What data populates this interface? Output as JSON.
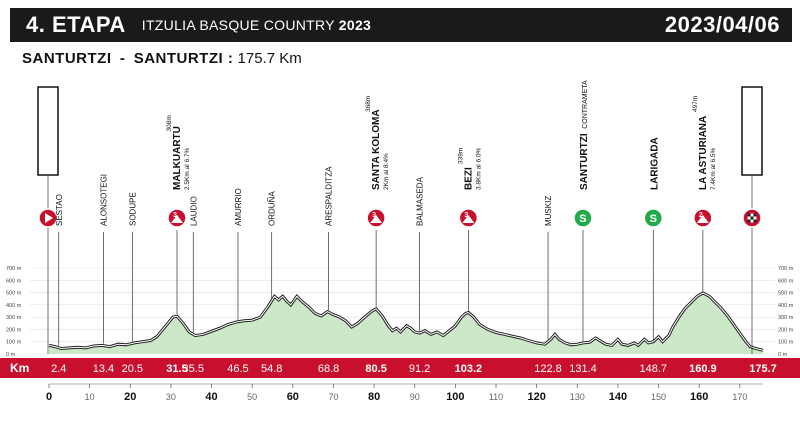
{
  "header": {
    "stage": "4. ETAPA",
    "race": "ITZULIA BASQUE COUNTRY",
    "year": "2023",
    "date": "2023/04/06"
  },
  "route": {
    "start": "SANTURTZI",
    "separator": "-",
    "finish": "SANTURTZI :",
    "distance": "175.7 Km"
  },
  "colors": {
    "bar_red": "#c8102e",
    "sprint_green": "#22a94a",
    "profile_light": "#cde8c9",
    "profile_dark": "#2e8b3a",
    "header_bg": "#1a1a1a"
  },
  "chart_data": {
    "type": "area",
    "xlabel": "Km",
    "xlim": [
      0,
      175.7
    ],
    "ylim": [
      0,
      700
    ],
    "y_ticks": [
      "700 m",
      "600 m",
      "500 m",
      "400 m",
      "300 m",
      "200 m",
      "100 m",
      "0 m"
    ],
    "x_ticks": [
      0,
      10,
      20,
      30,
      40,
      50,
      60,
      70,
      80,
      90,
      100,
      110,
      120,
      130,
      140,
      150,
      160,
      170
    ],
    "km_markers": [
      "2.4",
      "13.4",
      "20.5",
      "31.5",
      "35.5",
      "46.5",
      "54.8",
      "68.8",
      "80.5",
      "91.2",
      "103.2",
      "122.8",
      "131.4",
      "148.7",
      "160.9",
      "175.7"
    ],
    "km_markers_highlight": [
      "31.5",
      "80.5",
      "103.2",
      "160.9",
      "175.7"
    ],
    "points": [
      {
        "name": "SANTURTZI",
        "km": 0,
        "kind": "start",
        "sub": ""
      },
      {
        "name": "SESTAO",
        "km": 2.4,
        "kind": "town",
        "sub": ""
      },
      {
        "name": "ALONSOTEGI",
        "km": 13.4,
        "kind": "town",
        "sub": ""
      },
      {
        "name": "SODUPE",
        "km": 20.5,
        "kind": "town",
        "sub": ""
      },
      {
        "name": "MALKUARTU",
        "km": 31.5,
        "kind": "climb",
        "alt": "308m",
        "sub": "2.5Km al 6.7%",
        "cat": "3"
      },
      {
        "name": "LAUDIO",
        "km": 35.5,
        "kind": "town",
        "sub": ""
      },
      {
        "name": "AMURRIO",
        "km": 46.5,
        "kind": "town",
        "sub": ""
      },
      {
        "name": "ORDUÑA",
        "km": 54.8,
        "kind": "town",
        "sub": ""
      },
      {
        "name": "ARESPALDITZA",
        "km": 68.8,
        "kind": "town",
        "sub": ""
      },
      {
        "name": "SANTA KOLOMA",
        "km": 80.5,
        "kind": "climb",
        "alt": "368m",
        "sub": "2Km al 8.4%",
        "cat": "3"
      },
      {
        "name": "BALMASEDA",
        "km": 91.2,
        "kind": "town",
        "sub": ""
      },
      {
        "name": "BEZI",
        "km": 103.2,
        "kind": "climb",
        "alt": "339m",
        "sub": "3.8Km al 6.0%",
        "cat": "3"
      },
      {
        "name": "MUSKIZ",
        "km": 122.8,
        "kind": "town",
        "sub": ""
      },
      {
        "name": "SANTURTZI",
        "km": 131.4,
        "kind": "sprint",
        "sub": "CONTRAMETA",
        "cat": "S"
      },
      {
        "name": "LARIGADA",
        "km": 148.7,
        "kind": "sprint",
        "sub": "",
        "cat": "S"
      },
      {
        "name": "LA ASTURIANA",
        "km": 160.9,
        "kind": "climb",
        "alt": "497m",
        "sub": "7.4Km al 6.5%",
        "cat": "2"
      },
      {
        "name": "SANTURTZI",
        "km": 175.7,
        "kind": "finish",
        "sub": ""
      }
    ],
    "profile": [
      [
        0,
        70
      ],
      [
        1.5,
        60
      ],
      [
        3,
        45
      ],
      [
        5,
        50
      ],
      [
        7,
        55
      ],
      [
        9,
        50
      ],
      [
        11,
        65
      ],
      [
        13,
        70
      ],
      [
        15,
        60
      ],
      [
        17,
        80
      ],
      [
        19,
        75
      ],
      [
        21,
        90
      ],
      [
        23,
        100
      ],
      [
        25,
        110
      ],
      [
        26.5,
        140
      ],
      [
        28,
        200
      ],
      [
        29.5,
        260
      ],
      [
        30.5,
        300
      ],
      [
        31.5,
        308
      ],
      [
        33,
        250
      ],
      [
        34.5,
        180
      ],
      [
        36,
        150
      ],
      [
        38,
        160
      ],
      [
        40,
        185
      ],
      [
        42,
        210
      ],
      [
        44,
        240
      ],
      [
        46,
        260
      ],
      [
        48,
        270
      ],
      [
        50,
        275
      ],
      [
        52,
        300
      ],
      [
        54,
        390
      ],
      [
        55.5,
        470
      ],
      [
        56.5,
        440
      ],
      [
        57.5,
        470
      ],
      [
        58.5,
        430
      ],
      [
        59.5,
        400
      ],
      [
        61,
        470
      ],
      [
        62.5,
        420
      ],
      [
        64,
        380
      ],
      [
        65.5,
        330
      ],
      [
        67,
        310
      ],
      [
        68.5,
        345
      ],
      [
        70,
        320
      ],
      [
        71.5,
        300
      ],
      [
        73,
        270
      ],
      [
        74.5,
        220
      ],
      [
        76,
        250
      ],
      [
        78,
        310
      ],
      [
        79.5,
        350
      ],
      [
        80.5,
        368
      ],
      [
        82,
        310
      ],
      [
        83.5,
        230
      ],
      [
        84.5,
        190
      ],
      [
        85.5,
        210
      ],
      [
        86.5,
        180
      ],
      [
        88,
        230
      ],
      [
        89,
        210
      ],
      [
        90,
        180
      ],
      [
        91.2,
        170
      ],
      [
        92.5,
        190
      ],
      [
        94,
        160
      ],
      [
        95.5,
        180
      ],
      [
        97,
        150
      ],
      [
        98.5,
        190
      ],
      [
        100,
        230
      ],
      [
        101.5,
        300
      ],
      [
        102.5,
        330
      ],
      [
        103.2,
        339
      ],
      [
        104.5,
        300
      ],
      [
        106,
        240
      ],
      [
        108,
        200
      ],
      [
        110,
        175
      ],
      [
        112,
        160
      ],
      [
        114,
        145
      ],
      [
        116,
        130
      ],
      [
        118,
        110
      ],
      [
        120,
        90
      ],
      [
        122,
        80
      ],
      [
        123.5,
        120
      ],
      [
        124.5,
        160
      ],
      [
        125.5,
        120
      ],
      [
        127,
        90
      ],
      [
        128.5,
        75
      ],
      [
        130,
        80
      ],
      [
        131.4,
        90
      ],
      [
        133,
        95
      ],
      [
        134.5,
        130
      ],
      [
        135.5,
        110
      ],
      [
        137,
        80
      ],
      [
        138.5,
        70
      ],
      [
        140,
        120
      ],
      [
        141,
        80
      ],
      [
        142.5,
        70
      ],
      [
        144,
        90
      ],
      [
        145,
        70
      ],
      [
        146.5,
        120
      ],
      [
        147.5,
        90
      ],
      [
        148.7,
        100
      ],
      [
        150,
        140
      ],
      [
        151,
        100
      ],
      [
        152.5,
        150
      ],
      [
        153.5,
        220
      ],
      [
        155,
        300
      ],
      [
        156.5,
        370
      ],
      [
        158,
        420
      ],
      [
        159.5,
        470
      ],
      [
        160.9,
        497
      ],
      [
        162.5,
        470
      ],
      [
        164,
        420
      ],
      [
        165.5,
        370
      ],
      [
        167,
        310
      ],
      [
        168.5,
        240
      ],
      [
        170,
        170
      ],
      [
        171.5,
        100
      ],
      [
        172.5,
        60
      ],
      [
        173.5,
        50
      ],
      [
        174.5,
        40
      ],
      [
        175.7,
        30
      ]
    ]
  }
}
